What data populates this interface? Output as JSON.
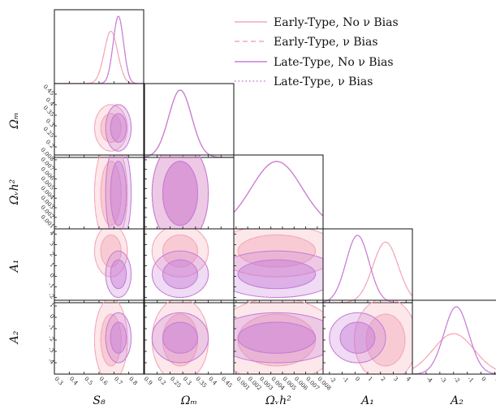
{
  "chart_data": {
    "type": "corner",
    "parameters": [
      {
        "key": "S8",
        "label": "S₈",
        "range": [
          0.3,
          0.9
        ],
        "ticks": [
          0.3,
          0.4,
          0.5,
          0.6,
          0.7,
          0.8,
          0.9
        ]
      },
      {
        "key": "Om",
        "label": "Ωₘ",
        "range": [
          0.15,
          0.5
        ],
        "ticks": [
          0.2,
          0.25,
          0.3,
          0.35,
          0.4,
          0.45
        ]
      },
      {
        "key": "Onu",
        "label": "Ωᵥh²",
        "range": [
          0.0008,
          0.0085
        ],
        "ticks": [
          0.001,
          0.002,
          0.003,
          0.004,
          0.005,
          0.006,
          0.007,
          0.008
        ]
      },
      {
        "key": "A1",
        "label": "A₁",
        "range": [
          -2.5,
          4.5
        ],
        "ticks": [
          -2,
          -1,
          0,
          1,
          2,
          3,
          4
        ]
      },
      {
        "key": "A2",
        "label": "A₂",
        "range": [
          -5,
          1.5
        ],
        "ticks": [
          -4,
          -3,
          -2,
          -1,
          0,
          1
        ]
      }
    ],
    "series": [
      {
        "name": "Early-Type, No ν Bias",
        "color": "#f4a9b8",
        "style": "solid",
        "mean": {
          "S8": 0.68,
          "Om": 0.29,
          "Onu": 0.0045,
          "A1": 2.4,
          "A2": -2.0
        },
        "std": {
          "S8": 0.045,
          "Om": 0.045,
          "Onu": 0.0022,
          "A1": 1.0,
          "A2": 1.5
        }
      },
      {
        "name": "Early-Type, ν Bias",
        "color": "#f4a9b8",
        "style": "dashed",
        "mean": {
          "S8": 0.68,
          "Om": 0.29,
          "Onu": 0.0045,
          "A1": 2.4,
          "A2": -2.0
        },
        "std": {
          "S8": 0.045,
          "Om": 0.045,
          "Onu": 0.0022,
          "A1": 1.0,
          "A2": 1.5
        }
      },
      {
        "name": "Late-Type, No ν Bias",
        "color": "#c77dd6",
        "style": "solid",
        "mean": {
          "S8": 0.73,
          "Om": 0.29,
          "Onu": 0.0045,
          "A1": 0.2,
          "A2": -1.8
        },
        "std": {
          "S8": 0.035,
          "Om": 0.045,
          "Onu": 0.0022,
          "A1": 0.9,
          "A2": 0.9
        }
      },
      {
        "name": "Late-Type, ν Bias",
        "color": "#c77dd6",
        "style": "dotted",
        "mean": {
          "S8": 0.73,
          "Om": 0.29,
          "Onu": 0.0045,
          "A1": 0.2,
          "A2": -1.8
        },
        "std": {
          "S8": 0.035,
          "Om": 0.045,
          "Onu": 0.0022,
          "A1": 0.9,
          "A2": 0.9
        }
      }
    ],
    "legend_position": "upper-right",
    "grid": false
  }
}
